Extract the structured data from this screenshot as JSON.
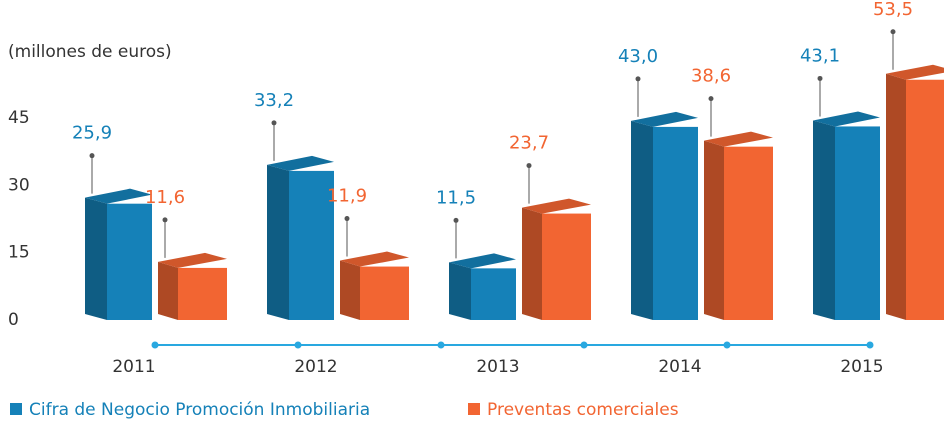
{
  "chart_data": {
    "type": "bar3d",
    "y_axis_label": "(millones de euros)",
    "categories": [
      "2011",
      "2012",
      "2013",
      "2014",
      "2015"
    ],
    "series": [
      {
        "name": "Cifra de Negocio Promoción Inmobiliaria",
        "color": "#1581b8",
        "values": [
          25.9,
          33.2,
          11.5,
          43.0,
          43.1
        ],
        "value_labels": [
          "25,9",
          "33,2",
          "11,5",
          "43,0",
          "43,1"
        ]
      },
      {
        "name": "Preventas comerciales",
        "color": "#f26532",
        "values": [
          11.6,
          11.9,
          23.7,
          38.6,
          53.5
        ],
        "value_labels": [
          "11,6",
          "11,9",
          "23,7",
          "38,6",
          "53,5"
        ]
      }
    ],
    "ylim": [
      0,
      55
    ],
    "yticks": [
      0,
      15,
      30,
      45
    ],
    "grid": false
  }
}
